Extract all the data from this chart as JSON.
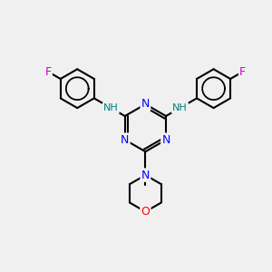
{
  "bg_color": "#f0f0f0",
  "atom_colors": {
    "N": "#0000ff",
    "O": "#ff0000",
    "F": "#cc00cc",
    "C": "#000000",
    "H": "#008080"
  },
  "bond_color": "#000000",
  "bond_width": 1.5,
  "figsize": [
    3.0,
    3.0
  ],
  "dpi": 100
}
